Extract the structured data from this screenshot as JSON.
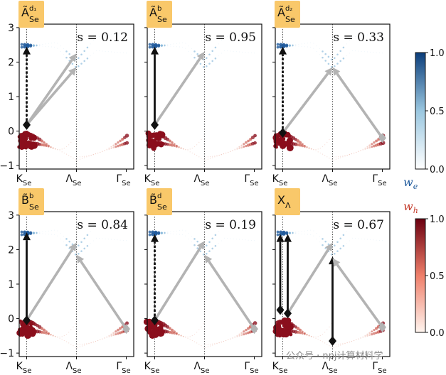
{
  "chart_data": {
    "type": "scatter",
    "x_tick_labels": [
      "K",
      "Λ",
      "Γ"
    ],
    "x_tick_sub": "Se",
    "y_ticks": [
      3,
      2,
      1,
      0,
      -1
    ],
    "ylim": [
      -1.1,
      3.1
    ],
    "panels": [
      {
        "label_main": "Ã",
        "label_sup": "d₁",
        "label_sub": "Se",
        "s_text": "s = 0.12",
        "arrows": [
          {
            "x0": 0.0,
            "y0": 0.18,
            "x1": 0.0,
            "y1": 2.45,
            "color": "#111111",
            "style": "dashed"
          },
          {
            "x0": 0.0,
            "y0": 0.18,
            "x1": 1.0,
            "y1": 2.25,
            "color": "#b3b3b3",
            "style": "solid"
          },
          {
            "x0": 0.0,
            "y0": 0.18,
            "x1": 1.0,
            "y1": 1.85,
            "color": "#b3b3b3",
            "style": "solid"
          }
        ],
        "diamonds": [
          {
            "x": 0.0,
            "y": 0.18
          }
        ]
      },
      {
        "label_main": "Ã",
        "label_sup": "b",
        "label_sub": "Se",
        "s_text": "s = 0.95",
        "arrows": [
          {
            "x0": 0.0,
            "y0": 0.18,
            "x1": 0.0,
            "y1": 2.45,
            "color": "#111111",
            "style": "solid"
          },
          {
            "x0": 0.0,
            "y0": 0.18,
            "x1": 1.0,
            "y1": 2.3,
            "color": "#b3b3b3",
            "style": "solid"
          }
        ],
        "diamonds": [
          {
            "x": 0.0,
            "y": 0.18
          }
        ]
      },
      {
        "label_main": "Ã",
        "label_sup": "d₂",
        "label_sub": "Se",
        "s_text": "s = 0.33",
        "arrows": [
          {
            "x0": 0.0,
            "y0": -0.05,
            "x1": 0.0,
            "y1": 2.45,
            "color": "#111111",
            "style": "dashed"
          },
          {
            "x0": 0.0,
            "y0": -0.05,
            "x1": 1.0,
            "y1": 1.85,
            "color": "#b3b3b3",
            "style": "solid"
          },
          {
            "x0": 2.0,
            "y0": -0.2,
            "x1": 1.0,
            "y1": 1.85,
            "color": "#b3b3b3",
            "style": "solid"
          }
        ],
        "diamonds": [
          {
            "x": 0.0,
            "y": -0.05
          },
          {
            "x": 2.0,
            "y": -0.2
          }
        ]
      },
      {
        "label_main": "B̃",
        "label_sup": "b",
        "label_sub": "Se",
        "s_text": "s = 0.84",
        "arrows": [
          {
            "x0": 0.0,
            "y0": -0.05,
            "x1": 0.0,
            "y1": 2.5,
            "color": "#111111",
            "style": "solid"
          },
          {
            "x0": 0.0,
            "y0": -0.05,
            "x1": 1.0,
            "y1": 2.2,
            "color": "#b3b3b3",
            "style": "solid"
          },
          {
            "x0": 2.0,
            "y0": -0.3,
            "x1": 1.0,
            "y1": 1.85,
            "color": "#b3b3b3",
            "style": "solid"
          }
        ],
        "diamonds": [
          {
            "x": 0.0,
            "y": -0.05
          },
          {
            "x": 2.0,
            "y": -0.3
          }
        ]
      },
      {
        "label_main": "B̃",
        "label_sup": "d",
        "label_sub": "Se",
        "s_text": "s = 0.19",
        "arrows": [
          {
            "x0": 0.0,
            "y0": -0.05,
            "x1": 0.0,
            "y1": 2.45,
            "color": "#111111",
            "style": "dashed"
          },
          {
            "x0": 0.0,
            "y0": -0.05,
            "x1": 1.0,
            "y1": 2.25,
            "color": "#b3b3b3",
            "style": "solid"
          },
          {
            "x0": 2.0,
            "y0": -0.3,
            "x1": 1.0,
            "y1": 1.85,
            "color": "#b3b3b3",
            "style": "solid"
          }
        ],
        "diamonds": [
          {
            "x": 0.0,
            "y": -0.05
          },
          {
            "x": 2.0,
            "y": -0.3
          }
        ]
      },
      {
        "label_main": "X",
        "label_sup": "",
        "label_sub": "Λ",
        "s_text": "s = 0.67",
        "arrows": [
          {
            "x0": -0.05,
            "y0": 0.25,
            "x1": -0.05,
            "y1": 2.45,
            "color": "#111111",
            "style": "solid"
          },
          {
            "x0": 0.1,
            "y0": 0.15,
            "x1": 0.1,
            "y1": 2.45,
            "color": "#111111",
            "style": "solid"
          },
          {
            "x0": 0.1,
            "y0": 0.15,
            "x1": 1.0,
            "y1": 2.2,
            "color": "#b3b3b3",
            "style": "solid"
          },
          {
            "x0": 1.0,
            "y0": -0.65,
            "x1": 1.0,
            "y1": 1.8,
            "color": "#111111",
            "style": "solid"
          },
          {
            "x0": 2.0,
            "y0": -0.25,
            "x1": 1.0,
            "y1": 1.75,
            "color": "#b3b3b3",
            "style": "solid"
          }
        ],
        "diamonds": [
          {
            "x": -0.05,
            "y": 0.25
          },
          {
            "x": 0.1,
            "y": 0.15
          },
          {
            "x": 1.0,
            "y": -0.65
          },
          {
            "x": 2.0,
            "y": -0.25
          }
        ]
      }
    ],
    "colorbars": [
      {
        "name": "w",
        "name_sub": "e",
        "range": [
          0.0,
          1.0
        ],
        "ticks": [
          "1.0",
          "0.5",
          "0.0"
        ],
        "color_low": "#ffffff",
        "color_high": "#0b3d7a"
      },
      {
        "name": "w",
        "name_sub": "h",
        "range": [
          0.0,
          1.0
        ],
        "ticks": [
          "1.0",
          "0.5",
          "0.0"
        ],
        "color_low": "#fff5ef",
        "color_high": "#6b0010"
      }
    ]
  },
  "colors": {
    "electron": "#1f5a9c",
    "hole": "#8a0e1c",
    "arrow_black": "#111111",
    "arrow_gray": "#b3b3b3",
    "label_bg": "#f9c86a"
  },
  "watermark": "公众号 · npj计算材料学"
}
